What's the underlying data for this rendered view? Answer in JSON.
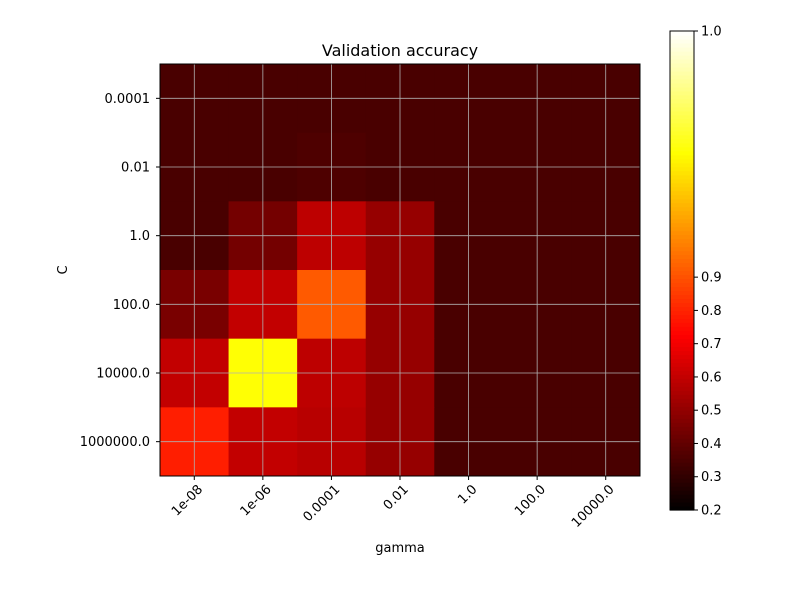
{
  "chart_data": {
    "type": "heatmap",
    "title": "Validation accuracy",
    "xlabel": "gamma",
    "ylabel": "C",
    "x_categories": [
      "1e-08",
      "1e-06",
      "0.0001",
      "0.01",
      "1.0",
      "100.0",
      "10000.0"
    ],
    "y_categories": [
      "0.0001",
      "0.01",
      "1.0",
      "100.0",
      "10000.0",
      "1000000.0"
    ],
    "values": [
      [
        0.35,
        0.35,
        0.35,
        0.35,
        0.35,
        0.35,
        0.35
      ],
      [
        0.35,
        0.35,
        0.36,
        0.35,
        0.35,
        0.35,
        0.35
      ],
      [
        0.35,
        0.44,
        0.59,
        0.51,
        0.35,
        0.35,
        0.35
      ],
      [
        0.45,
        0.6,
        0.92,
        0.51,
        0.35,
        0.35,
        0.35
      ],
      [
        0.6,
        0.96,
        0.59,
        0.51,
        0.35,
        0.35,
        0.35
      ],
      [
        0.79,
        0.6,
        0.58,
        0.51,
        0.35,
        0.35,
        0.35
      ]
    ],
    "colormap": "hot",
    "colorbar": {
      "ticks": [
        0.2,
        0.3,
        0.4,
        0.5,
        0.6,
        0.7,
        0.8,
        0.9,
        1.0
      ],
      "tick_labels": [
        "0.2",
        "0.3",
        "0.4",
        "0.5",
        "0.6",
        "0.7",
        "0.8",
        "0.9",
        "1.0"
      ],
      "range": [
        0.2,
        1.0
      ],
      "midpoint": 0.92
    },
    "grid": true
  }
}
